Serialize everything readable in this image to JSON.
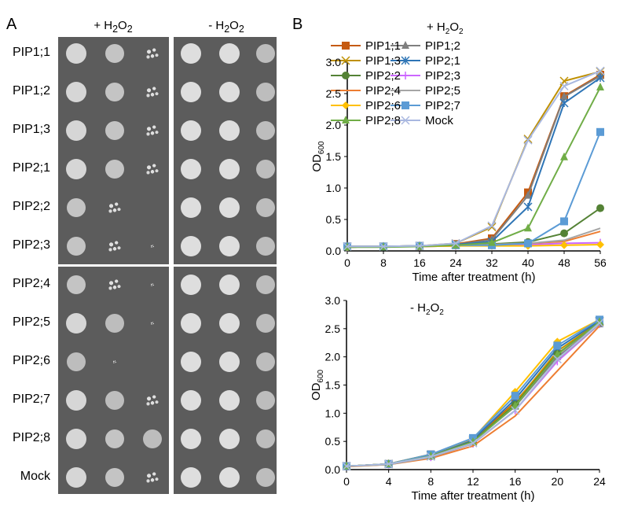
{
  "panel_a": {
    "letter": "A",
    "columns": [
      {
        "label_prefix": "+ H",
        "sub1": "2",
        "mid": "O",
        "sub2": "2"
      },
      {
        "label_prefix": "- H",
        "sub1": "2",
        "mid": "O",
        "sub2": "2"
      }
    ],
    "rows": [
      "PIP1;1",
      "PIP1;2",
      "PIP1;3",
      "PIP2;1",
      "PIP2;2",
      "PIP2;3",
      "PIP2;4",
      "PIP2;5",
      "PIP2;6",
      "PIP2;7",
      "PIP2;8",
      "Mock"
    ],
    "growth_plus": [
      [
        "full",
        "med",
        "speck"
      ],
      [
        "full",
        "med",
        "speck"
      ],
      [
        "full",
        "med",
        "speck"
      ],
      [
        "full",
        "med",
        "speck"
      ],
      [
        "med",
        "speck",
        "none"
      ],
      [
        "med",
        "speck",
        "trace"
      ],
      [
        "med",
        "speck",
        "trace"
      ],
      [
        "full",
        "dense",
        "trace"
      ],
      [
        "dense",
        "trace",
        "none"
      ],
      [
        "full",
        "dense",
        "speck"
      ],
      [
        "full",
        "med",
        "dense"
      ],
      [
        "full",
        "med",
        "speck"
      ]
    ],
    "growth_minus": [
      [
        "full",
        "full",
        "dense"
      ],
      [
        "full",
        "full",
        "dense"
      ],
      [
        "full",
        "full",
        "dense"
      ],
      [
        "full",
        "full",
        "dense"
      ],
      [
        "full",
        "full",
        "dense"
      ],
      [
        "full",
        "full",
        "dense"
      ],
      [
        "full",
        "full",
        "dense"
      ],
      [
        "full",
        "full",
        "dense"
      ],
      [
        "full",
        "full",
        "dense"
      ],
      [
        "full",
        "full",
        "dense"
      ],
      [
        "full",
        "full",
        "dense"
      ],
      [
        "full",
        "full",
        "dense"
      ]
    ]
  },
  "panel_b": {
    "letter": "B"
  },
  "chart_data": [
    {
      "type": "line",
      "title": "+ H2O2",
      "xlabel": "Time after treatment (h)",
      "ylabel": "OD600",
      "x": [
        0,
        8,
        16,
        24,
        32,
        40,
        48,
        56
      ],
      "xticks": [
        "0",
        "8",
        "16",
        "24",
        "32",
        "40",
        "48",
        "56"
      ],
      "yticks": [
        "0.0",
        "0.5",
        "1.0",
        "1.5",
        "2.0",
        "2.5",
        "3.0"
      ],
      "ylim": [
        0,
        3.0
      ],
      "legend_position": "top-left",
      "series": [
        {
          "name": "PIP1;1",
          "color": "#c55a11",
          "marker": "square",
          "values": [
            0.07,
            0.07,
            0.08,
            0.11,
            0.2,
            0.93,
            2.46,
            2.8
          ]
        },
        {
          "name": "PIP1;2",
          "color": "#7f7f7f",
          "marker": "triangle",
          "values": [
            0.07,
            0.07,
            0.08,
            0.1,
            0.18,
            0.88,
            2.45,
            2.78
          ]
        },
        {
          "name": "PIP1;3",
          "color": "#bf9000",
          "marker": "x",
          "values": [
            0.07,
            0.07,
            0.08,
            0.12,
            0.38,
            1.78,
            2.7,
            2.85
          ]
        },
        {
          "name": "PIP2;1",
          "color": "#2e75b6",
          "marker": "star",
          "values": [
            0.07,
            0.07,
            0.08,
            0.1,
            0.15,
            0.7,
            2.35,
            2.75
          ]
        },
        {
          "name": "PIP2;2",
          "color": "#548235",
          "marker": "circle",
          "values": [
            0.06,
            0.07,
            0.07,
            0.09,
            0.11,
            0.14,
            0.28,
            0.68
          ]
        },
        {
          "name": "PIP2;3",
          "color": "#cc66ff",
          "marker": "plus",
          "values": [
            0.06,
            0.07,
            0.07,
            0.08,
            0.09,
            0.1,
            0.12,
            0.13
          ]
        },
        {
          "name": "PIP2;4",
          "color": "#ed7d31",
          "marker": "dash",
          "values": [
            0.06,
            0.07,
            0.07,
            0.08,
            0.1,
            0.12,
            0.15,
            0.31
          ]
        },
        {
          "name": "PIP2;5",
          "color": "#a5a5a5",
          "marker": "dash",
          "values": [
            0.06,
            0.07,
            0.07,
            0.08,
            0.1,
            0.12,
            0.17,
            0.36
          ]
        },
        {
          "name": "PIP2;6",
          "color": "#ffc000",
          "marker": "diamond",
          "values": [
            0.06,
            0.07,
            0.07,
            0.08,
            0.08,
            0.08,
            0.09,
            0.1
          ]
        },
        {
          "name": "PIP2;7",
          "color": "#5b9bd5",
          "marker": "square",
          "values": [
            0.07,
            0.07,
            0.08,
            0.09,
            0.09,
            0.12,
            0.47,
            1.89
          ]
        },
        {
          "name": "PIP2;8",
          "color": "#70ad47",
          "marker": "triangle",
          "values": [
            0.06,
            0.06,
            0.07,
            0.09,
            0.13,
            0.36,
            1.49,
            2.6
          ]
        },
        {
          "name": "Mock",
          "color": "#a9b8e0",
          "marker": "x",
          "values": [
            0.07,
            0.07,
            0.08,
            0.12,
            0.4,
            1.76,
            2.62,
            2.86
          ]
        }
      ]
    },
    {
      "type": "line",
      "title": "- H2O2",
      "xlabel": "Time after treatment (h)",
      "ylabel": "OD600",
      "x": [
        0,
        4,
        8,
        12,
        16,
        20,
        24
      ],
      "xticks": [
        "0",
        "4",
        "8",
        "12",
        "16",
        "20",
        "24"
      ],
      "yticks": [
        "0.0",
        "0.5",
        "1.0",
        "1.5",
        "2.0",
        "2.5",
        "3.0"
      ],
      "ylim": [
        0,
        3.0
      ],
      "series": [
        {
          "name": "PIP1;1",
          "color": "#c55a11",
          "marker": "square",
          "values": [
            0.06,
            0.1,
            0.27,
            0.52,
            1.2,
            2.05,
            2.6
          ]
        },
        {
          "name": "PIP1;2",
          "color": "#7f7f7f",
          "marker": "triangle",
          "values": [
            0.06,
            0.1,
            0.25,
            0.5,
            1.12,
            2.0,
            2.58
          ]
        },
        {
          "name": "PIP1;3",
          "color": "#bf9000",
          "marker": "x",
          "values": [
            0.06,
            0.1,
            0.25,
            0.5,
            1.18,
            2.1,
            2.62
          ]
        },
        {
          "name": "PIP2;1",
          "color": "#2e75b6",
          "marker": "star",
          "values": [
            0.06,
            0.1,
            0.26,
            0.53,
            1.25,
            2.15,
            2.64
          ]
        },
        {
          "name": "PIP2;2",
          "color": "#548235",
          "marker": "circle",
          "values": [
            0.06,
            0.1,
            0.24,
            0.5,
            1.15,
            2.05,
            2.62
          ]
        },
        {
          "name": "PIP2;3",
          "color": "#cc66ff",
          "marker": "plus",
          "values": [
            0.06,
            0.09,
            0.22,
            0.46,
            1.05,
            1.92,
            2.58
          ]
        },
        {
          "name": "PIP2;4",
          "color": "#ed7d31",
          "marker": "dash",
          "values": [
            0.05,
            0.09,
            0.2,
            0.42,
            0.95,
            1.75,
            2.55
          ]
        },
        {
          "name": "PIP2;5",
          "color": "#a5a5a5",
          "marker": "dash",
          "values": [
            0.06,
            0.09,
            0.22,
            0.46,
            1.05,
            1.95,
            2.58
          ]
        },
        {
          "name": "PIP2;6",
          "color": "#ffc000",
          "marker": "diamond",
          "values": [
            0.06,
            0.1,
            0.27,
            0.55,
            1.38,
            2.27,
            2.66
          ]
        },
        {
          "name": "PIP2;7",
          "color": "#5b9bd5",
          "marker": "square",
          "values": [
            0.06,
            0.1,
            0.27,
            0.56,
            1.31,
            2.2,
            2.66
          ]
        },
        {
          "name": "PIP2;8",
          "color": "#70ad47",
          "marker": "triangle",
          "values": [
            0.06,
            0.1,
            0.24,
            0.49,
            1.13,
            2.04,
            2.62
          ]
        },
        {
          "name": "Mock",
          "color": "#a9b8e0",
          "marker": "x",
          "values": [
            0.06,
            0.1,
            0.23,
            0.47,
            1.05,
            1.96,
            2.6
          ]
        }
      ]
    }
  ]
}
